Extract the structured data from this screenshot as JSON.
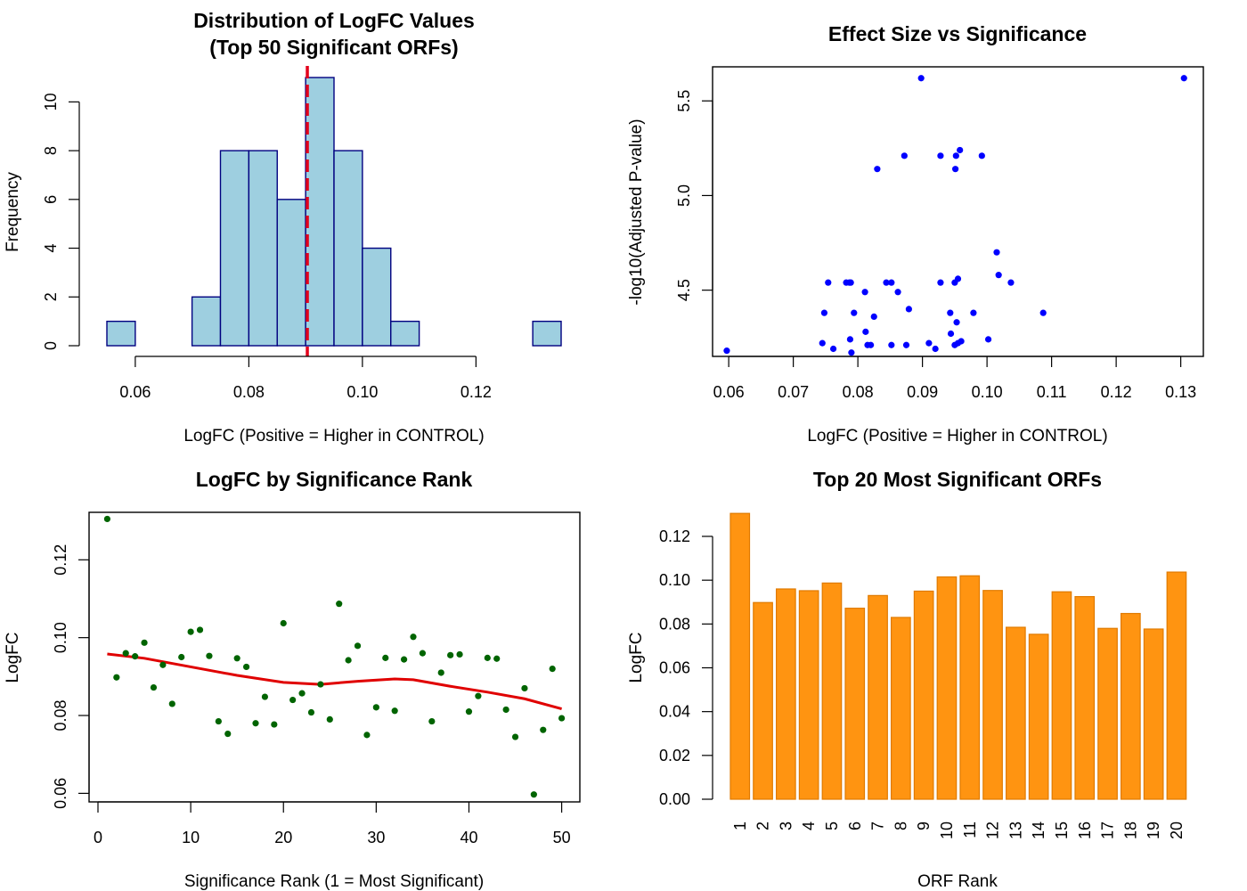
{
  "chart_data": [
    {
      "type": "bar",
      "subtype": "histogram",
      "title": "Distribution of LogFC Values",
      "subtitle": "(Top 50 Significant ORFs)",
      "xlabel": "LogFC (Positive = Higher in CONTROL)",
      "ylabel": "Frequency",
      "xlim": [
        0.055,
        0.135
      ],
      "ylim": [
        0,
        11
      ],
      "x_ticks": [
        0.06,
        0.08,
        0.1,
        0.12
      ],
      "x_tick_labels": [
        "0.06",
        "0.08",
        "0.10",
        "0.12"
      ],
      "y_ticks": [
        0,
        2,
        4,
        6,
        8,
        10
      ],
      "y_tick_labels": [
        "0",
        "2",
        "4",
        "6",
        "8",
        "10"
      ],
      "bin_edges": [
        0.055,
        0.06,
        0.065,
        0.07,
        0.075,
        0.08,
        0.085,
        0.09,
        0.095,
        0.1,
        0.105,
        0.11,
        0.115,
        0.12,
        0.125,
        0.13,
        0.135
      ],
      "values": [
        1,
        0,
        0,
        2,
        8,
        8,
        6,
        11,
        8,
        4,
        1,
        0,
        0,
        0,
        0,
        1
      ],
      "bar_fill": "#9ecfe0",
      "bar_stroke": "#000080",
      "reference_line": {
        "x": 0.0903,
        "color": "#e3001b",
        "style": "dashed"
      },
      "grid": false
    },
    {
      "type": "scatter",
      "title": "Effect Size vs Significance",
      "xlabel": "LogFC (Positive = Higher in CONTROL)",
      "ylabel": "-log10(Adjusted P-value)",
      "xlim": [
        0.0575,
        0.1335
      ],
      "ylim": [
        4.15,
        5.68
      ],
      "x_ticks": [
        0.06,
        0.07,
        0.08,
        0.09,
        0.1,
        0.11,
        0.12,
        0.13
      ],
      "x_tick_labels": [
        "0.06",
        "0.07",
        "0.08",
        "0.09",
        "0.10",
        "0.11",
        "0.12",
        "0.13"
      ],
      "y_ticks": [
        4.5,
        5.0,
        5.5
      ],
      "y_tick_labels": [
        "4.5",
        "5.0",
        "5.5"
      ],
      "point_color": "#0000ff",
      "x": [
        0.0597,
        0.0898,
        0.1305,
        0.083,
        0.0872,
        0.0928,
        0.0952,
        0.0958,
        0.0992,
        0.0951,
        0.1015,
        0.1018,
        0.1037,
        0.0754,
        0.0782,
        0.0789,
        0.0811,
        0.0844,
        0.0852,
        0.0862,
        0.0928,
        0.095,
        0.0955,
        0.0748,
        0.0794,
        0.0825,
        0.0879,
        0.0943,
        0.0953,
        0.0979,
        0.1087,
        0.0812,
        0.0944,
        0.0745,
        0.0788,
        0.0762,
        0.0815,
        0.082,
        0.0852,
        0.0875,
        0.079,
        0.091,
        0.092,
        0.095,
        0.0955,
        0.096,
        0.1002,
        0.0787
      ],
      "y": [
        4.18,
        5.62,
        5.62,
        5.14,
        5.21,
        5.21,
        5.21,
        5.24,
        5.21,
        5.14,
        4.7,
        4.58,
        4.54,
        4.54,
        4.54,
        4.54,
        4.49,
        4.54,
        4.54,
        4.49,
        4.54,
        4.54,
        4.56,
        4.38,
        4.38,
        4.36,
        4.4,
        4.38,
        4.33,
        4.38,
        4.38,
        4.28,
        4.27,
        4.22,
        4.24,
        4.19,
        4.21,
        4.21,
        4.21,
        4.21,
        4.17,
        4.22,
        4.19,
        4.21,
        4.22,
        4.23,
        4.24,
        4.54
      ],
      "grid": false
    },
    {
      "type": "scatter",
      "title": "LogFC by Significance Rank",
      "xlabel": "Significance Rank (1 = Most Significant)",
      "ylabel": "LogFC",
      "xlim": [
        -0.96,
        51.96
      ],
      "ylim": [
        0.0578,
        0.1322
      ],
      "x_ticks": [
        0,
        10,
        20,
        30,
        40,
        50
      ],
      "x_tick_labels": [
        "0",
        "10",
        "20",
        "30",
        "40",
        "50"
      ],
      "y_ticks": [
        0.06,
        0.08,
        0.1,
        0.12
      ],
      "y_tick_labels": [
        "0.06",
        "0.08",
        "0.10",
        "0.12"
      ],
      "point_color": "#006400",
      "x": [
        1,
        2,
        3,
        4,
        5,
        6,
        7,
        8,
        9,
        10,
        11,
        12,
        13,
        14,
        15,
        16,
        17,
        18,
        19,
        20,
        21,
        22,
        23,
        24,
        25,
        26,
        27,
        28,
        29,
        30,
        31,
        32,
        33,
        34,
        35,
        36,
        37,
        38,
        39,
        40,
        41,
        42,
        43,
        44,
        45,
        46,
        47,
        48,
        49,
        50
      ],
      "y": [
        0.1305,
        0.0898,
        0.096,
        0.0952,
        0.0987,
        0.0872,
        0.093,
        0.083,
        0.095,
        0.1015,
        0.102,
        0.0953,
        0.0785,
        0.0753,
        0.0947,
        0.0925,
        0.078,
        0.0848,
        0.0777,
        0.1037,
        0.084,
        0.0857,
        0.0808,
        0.088,
        0.079,
        0.1087,
        0.0942,
        0.0979,
        0.075,
        0.0821,
        0.0948,
        0.0812,
        0.0944,
        0.1002,
        0.096,
        0.0785,
        0.091,
        0.0955,
        0.0957,
        0.081,
        0.085,
        0.0948,
        0.0946,
        0.0815,
        0.0745,
        0.087,
        0.0597,
        0.0763,
        0.092,
        0.0793
      ],
      "trend_line": {
        "color": "#e00000",
        "x": [
          1,
          5,
          10,
          15,
          20,
          24,
          28,
          32,
          34,
          38,
          42,
          46,
          50
        ],
        "y": [
          0.0958,
          0.0947,
          0.0925,
          0.0903,
          0.0885,
          0.088,
          0.0888,
          0.0894,
          0.0892,
          0.0875,
          0.086,
          0.0843,
          0.0817
        ]
      },
      "grid": false
    },
    {
      "type": "bar",
      "title": "Top 20 Most Significant ORFs",
      "xlabel": "ORF Rank",
      "ylabel": "LogFC",
      "ylim": [
        0,
        0.1305
      ],
      "y_ticks": [
        0.0,
        0.02,
        0.04,
        0.06,
        0.08,
        0.1,
        0.12
      ],
      "y_tick_labels": [
        "0.00",
        "0.02",
        "0.04",
        "0.06",
        "0.08",
        "0.10",
        "0.12"
      ],
      "categories": [
        "1",
        "2",
        "3",
        "4",
        "5",
        "6",
        "7",
        "8",
        "9",
        "10",
        "11",
        "12",
        "13",
        "14",
        "15",
        "16",
        "17",
        "18",
        "19",
        "20"
      ],
      "values": [
        0.1305,
        0.0898,
        0.096,
        0.0952,
        0.0987,
        0.0872,
        0.093,
        0.083,
        0.095,
        0.1015,
        0.102,
        0.0953,
        0.0785,
        0.0753,
        0.0947,
        0.0925,
        0.078,
        0.0848,
        0.0777,
        0.1037
      ],
      "bar_fill": "#ff9411",
      "bar_stroke": "#e07a00",
      "grid": false
    }
  ]
}
